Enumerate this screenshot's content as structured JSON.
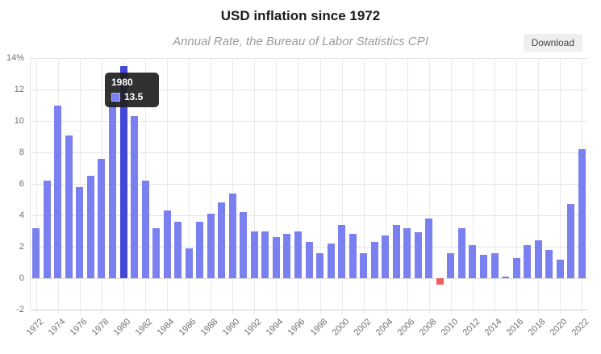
{
  "header": {
    "title": "USD inflation since 1972",
    "subtitle": "Annual Rate, the Bureau of Labor Statistics CPI",
    "download_label": "Download"
  },
  "chart_data": {
    "type": "bar",
    "title": "USD inflation since 1972",
    "subtitle": "Annual Rate, the Bureau of Labor Statistics CPI",
    "categories": [
      1972,
      1973,
      1974,
      1975,
      1976,
      1977,
      1978,
      1979,
      1980,
      1981,
      1982,
      1983,
      1984,
      1985,
      1986,
      1987,
      1988,
      1989,
      1990,
      1991,
      1992,
      1993,
      1994,
      1995,
      1996,
      1997,
      1998,
      1999,
      2000,
      2001,
      2002,
      2003,
      2004,
      2005,
      2006,
      2007,
      2008,
      2009,
      2010,
      2011,
      2012,
      2013,
      2014,
      2015,
      2016,
      2017,
      2018,
      2019,
      2020,
      2021,
      2022
    ],
    "values": [
      3.2,
      6.2,
      11.0,
      9.1,
      5.8,
      6.5,
      7.6,
      11.3,
      13.5,
      10.3,
      6.2,
      3.2,
      4.3,
      3.6,
      1.9,
      3.6,
      4.1,
      4.8,
      5.4,
      4.2,
      3.0,
      3.0,
      2.6,
      2.8,
      3.0,
      2.3,
      1.6,
      2.2,
      3.4,
      2.8,
      1.6,
      2.3,
      2.7,
      3.4,
      3.2,
      2.9,
      3.8,
      -0.4,
      1.6,
      3.2,
      2.1,
      1.5,
      1.6,
      0.1,
      1.3,
      2.1,
      2.4,
      1.8,
      1.2,
      4.7,
      8.2
    ],
    "xlabel": "",
    "ylabel": "",
    "ylim": [
      -2,
      14
    ],
    "ytick_step": 2,
    "ytick_labels": [
      "14%",
      "12",
      "10",
      "8",
      "6",
      "4",
      "2",
      "0",
      "-2"
    ],
    "xtick_years": [
      1972,
      1974,
      1976,
      1978,
      1980,
      1982,
      1984,
      1986,
      1988,
      1990,
      1992,
      1994,
      1996,
      1998,
      2000,
      2002,
      2004,
      2006,
      2008,
      2010,
      2012,
      2014,
      2016,
      2018,
      2020,
      2022
    ],
    "grid": true,
    "legend": "none",
    "highlight": {
      "year": 1980,
      "value": 13.5
    },
    "tooltip": {
      "title": "1980",
      "value": "13.5"
    },
    "colors": {
      "bar": "#7b80f0",
      "bar_highlight": "#4448d8",
      "bar_negative": "#ee5f5e",
      "grid": "#e4e4e4",
      "axis_text": "#707070",
      "tooltip_bg": "rgba(32,32,32,0.92)"
    }
  }
}
